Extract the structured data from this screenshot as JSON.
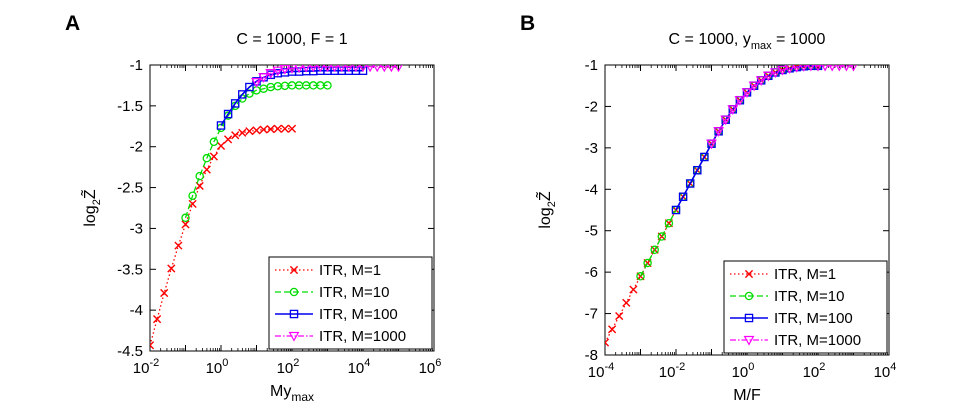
{
  "chart_data": [
    {
      "panel_label": "A",
      "type": "line",
      "title": "C = 1000, F = 1",
      "xlabel": "My",
      "xlabel_sub": "max",
      "ylabel": "log",
      "ylabel_sub": "2",
      "ylabel_var": "Z̃",
      "xscale": "log",
      "xlim_exp": [
        -2,
        6
      ],
      "ylim": [
        -4.5,
        -1
      ],
      "xtick_base": "10",
      "xtick_exps": [
        "-2",
        "0",
        "2",
        "4",
        "6"
      ],
      "yticks": [
        "-1",
        "-1.5",
        "-2",
        "-2.5",
        "-3",
        "-3.5",
        "-4",
        "-4.5"
      ],
      "legend_position": "bottom-right",
      "series": [
        {
          "name": "ITR, M=1",
          "color": "#ff0000",
          "style": "dotted",
          "marker": "x",
          "x_exp": [
            -2,
            -1.8,
            -1.6,
            -1.4,
            -1.2,
            -1,
            -0.8,
            -0.6,
            -0.4,
            -0.2,
            0,
            0.2,
            0.4,
            0.6,
            0.8,
            1,
            1.2,
            1.4,
            1.6,
            1.8,
            2
          ],
          "y": [
            -4.43,
            -4.11,
            -3.79,
            -3.49,
            -3.21,
            -2.95,
            -2.7,
            -2.48,
            -2.28,
            -2.12,
            -1.99,
            -1.91,
            -1.86,
            -1.83,
            -1.81,
            -1.8,
            -1.79,
            -1.785,
            -1.78,
            -1.78,
            -1.78
          ]
        },
        {
          "name": "ITR, M=10",
          "color": "#00dd00",
          "style": "dashed",
          "marker": "o",
          "x_exp": [
            -1,
            -0.8,
            -0.6,
            -0.4,
            -0.2,
            0,
            0.2,
            0.4,
            0.6,
            0.8,
            1,
            1.2,
            1.4,
            1.6,
            1.8,
            2,
            2.2,
            2.4,
            2.6,
            2.8,
            3
          ],
          "y": [
            -2.87,
            -2.6,
            -2.36,
            -2.14,
            -1.94,
            -1.77,
            -1.62,
            -1.5,
            -1.41,
            -1.35,
            -1.31,
            -1.29,
            -1.27,
            -1.26,
            -1.255,
            -1.25,
            -1.25,
            -1.25,
            -1.25,
            -1.25,
            -1.25
          ]
        },
        {
          "name": "ITR, M=100",
          "color": "#0000ee",
          "style": "solid",
          "marker": "s",
          "x_exp": [
            0,
            0.2,
            0.4,
            0.6,
            0.8,
            1,
            1.2,
            1.4,
            1.6,
            1.8,
            2,
            2.2,
            2.4,
            2.6,
            2.8,
            3,
            3.2,
            3.4,
            3.6,
            3.8,
            4
          ],
          "y": [
            -1.74,
            -1.6,
            -1.47,
            -1.36,
            -1.27,
            -1.2,
            -1.15,
            -1.12,
            -1.1,
            -1.09,
            -1.08,
            -1.08,
            -1.075,
            -1.075,
            -1.07,
            -1.07,
            -1.07,
            -1.07,
            -1.07,
            -1.07,
            -1.07
          ]
        },
        {
          "name": "ITR, M=1000",
          "color": "#ff00ff",
          "style": "dashdot",
          "marker": "v",
          "x_exp": [
            1,
            1.2,
            1.4,
            1.6,
            1.8,
            2,
            2.2,
            2.4,
            2.6,
            2.8,
            3,
            3.2,
            3.4,
            3.6,
            3.8,
            4,
            4.2,
            4.4,
            4.6,
            4.8,
            5
          ],
          "y": [
            -1.21,
            -1.15,
            -1.1,
            -1.07,
            -1.05,
            -1.04,
            -1.03,
            -1.025,
            -1.02,
            -1.02,
            -1.02,
            -1.02,
            -1.02,
            -1.02,
            -1.02,
            -1.02,
            -1.02,
            -1.02,
            -1.02,
            -1.02,
            -1.02
          ]
        }
      ]
    },
    {
      "panel_label": "B",
      "type": "line",
      "title": "C = 1000, y",
      "title_sub": "max",
      "title_tail": " = 1000",
      "xlabel": "M/F",
      "ylabel": "log",
      "ylabel_sub": "2",
      "ylabel_var": "Z̃",
      "xscale": "log",
      "xlim_exp": [
        -4,
        4
      ],
      "ylim": [
        -8,
        -1
      ],
      "xtick_base": "10",
      "xtick_exps": [
        "-4",
        "-2",
        "0",
        "2",
        "4"
      ],
      "yticks": [
        "-1",
        "-2",
        "-3",
        "-4",
        "-5",
        "-6",
        "-7",
        "-8"
      ],
      "legend_position": "bottom-right",
      "series": [
        {
          "name": "ITR, M=1",
          "color": "#ff0000",
          "style": "dotted",
          "marker": "x",
          "x_exp": [
            -4,
            -3.8,
            -3.6,
            -3.4,
            -3.2,
            -3,
            -2.8,
            -2.6,
            -2.4,
            -2.2,
            -2,
            -1.8,
            -1.6,
            -1.4,
            -1.2,
            -1,
            -0.8,
            -0.6,
            -0.4,
            -0.2,
            0,
            0.2,
            0.4,
            0.6,
            0.8,
            1,
            1.2,
            1.4,
            1.6,
            1.8,
            2
          ],
          "y": [
            -7.7,
            -7.38,
            -7.06,
            -6.74,
            -6.42,
            -6.1,
            -5.78,
            -5.46,
            -5.14,
            -4.82,
            -4.5,
            -4.18,
            -3.86,
            -3.54,
            -3.22,
            -2.9,
            -2.6,
            -2.32,
            -2.07,
            -1.85,
            -1.66,
            -1.5,
            -1.37,
            -1.26,
            -1.18,
            -1.12,
            -1.08,
            -1.05,
            -1.03,
            -1.02,
            -1.02
          ]
        },
        {
          "name": "ITR, M=10",
          "color": "#00dd00",
          "style": "dashed",
          "marker": "o",
          "x_exp": [
            -3,
            -2.8,
            -2.6,
            -2.4,
            -2.2,
            -2,
            -1.8,
            -1.6,
            -1.4,
            -1.2,
            -1,
            -0.8,
            -0.6,
            -0.4,
            -0.2,
            0,
            0.2,
            0.4,
            0.6,
            0.8,
            1,
            1.2,
            1.4,
            1.6,
            1.8,
            2
          ],
          "y": [
            -6.1,
            -5.78,
            -5.46,
            -5.14,
            -4.82,
            -4.5,
            -4.18,
            -3.86,
            -3.54,
            -3.22,
            -2.9,
            -2.6,
            -2.32,
            -2.07,
            -1.85,
            -1.66,
            -1.5,
            -1.37,
            -1.26,
            -1.18,
            -1.12,
            -1.08,
            -1.05,
            -1.03,
            -1.02,
            -1.02
          ]
        },
        {
          "name": "ITR, M=100",
          "color": "#0000ee",
          "style": "solid",
          "marker": "s",
          "x_exp": [
            -2,
            -1.8,
            -1.6,
            -1.4,
            -1.2,
            -1,
            -0.8,
            -0.6,
            -0.4,
            -0.2,
            0,
            0.2,
            0.4,
            0.6,
            0.8,
            1,
            1.2,
            1.4,
            1.6,
            1.8,
            2
          ],
          "y": [
            -4.5,
            -4.18,
            -3.86,
            -3.54,
            -3.22,
            -2.9,
            -2.6,
            -2.32,
            -2.07,
            -1.85,
            -1.66,
            -1.5,
            -1.37,
            -1.26,
            -1.18,
            -1.12,
            -1.08,
            -1.05,
            -1.03,
            -1.02,
            -1.02
          ]
        },
        {
          "name": "ITR, M=1000",
          "color": "#ff00ff",
          "style": "dashdot",
          "marker": "v",
          "x_exp": [
            -1,
            -0.8,
            -0.6,
            -0.4,
            -0.2,
            0,
            0.2,
            0.4,
            0.6,
            0.8,
            1,
            1.2,
            1.4,
            1.6,
            1.8,
            2,
            2.2,
            2.4,
            2.6,
            2.8,
            3
          ],
          "y": [
            -2.9,
            -2.6,
            -2.32,
            -2.07,
            -1.85,
            -1.66,
            -1.5,
            -1.37,
            -1.26,
            -1.18,
            -1.12,
            -1.08,
            -1.05,
            -1.03,
            -1.02,
            -1.02,
            -1.02,
            -1.02,
            -1.02,
            -1.02,
            -1.02
          ]
        }
      ]
    }
  ]
}
